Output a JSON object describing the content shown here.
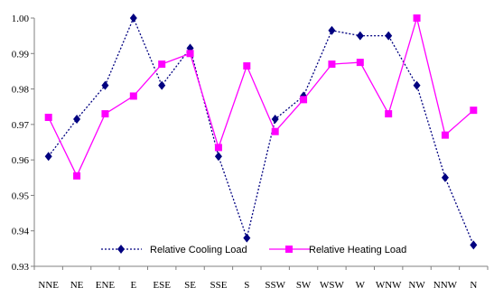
{
  "chart_data": {
    "type": "line",
    "categories": [
      "NNE",
      "NE",
      "ENE",
      "E",
      "ESE",
      "SE",
      "SSE",
      "S",
      "SSW",
      "SW",
      "WSW",
      "W",
      "WNW",
      "NW",
      "NNW",
      "N"
    ],
    "ylim": [
      0.93,
      1.0
    ],
    "yticks": [
      "0.93",
      "0.94",
      "0.95",
      "0.96",
      "0.97",
      "0.98",
      "0.99",
      "1.00"
    ],
    "grid": false,
    "legend_placement": "bottom-center",
    "series": [
      {
        "name": "Relative Cooling Load",
        "color": "#000080",
        "line_style": "dotted",
        "marker": "diamond",
        "values": [
          0.961,
          0.9715,
          0.981,
          1.0,
          0.981,
          0.9915,
          0.961,
          0.938,
          0.9715,
          0.978,
          0.9965,
          0.995,
          0.995,
          0.981,
          0.955,
          0.936
        ]
      },
      {
        "name": "Relative Heating Load",
        "color": "#ff00ff",
        "line_style": "solid",
        "marker": "square",
        "values": [
          0.972,
          0.9555,
          0.973,
          0.978,
          0.987,
          0.99,
          0.9635,
          0.9865,
          0.968,
          0.977,
          0.987,
          0.9875,
          0.973,
          1.0,
          0.967,
          0.974
        ]
      }
    ]
  }
}
